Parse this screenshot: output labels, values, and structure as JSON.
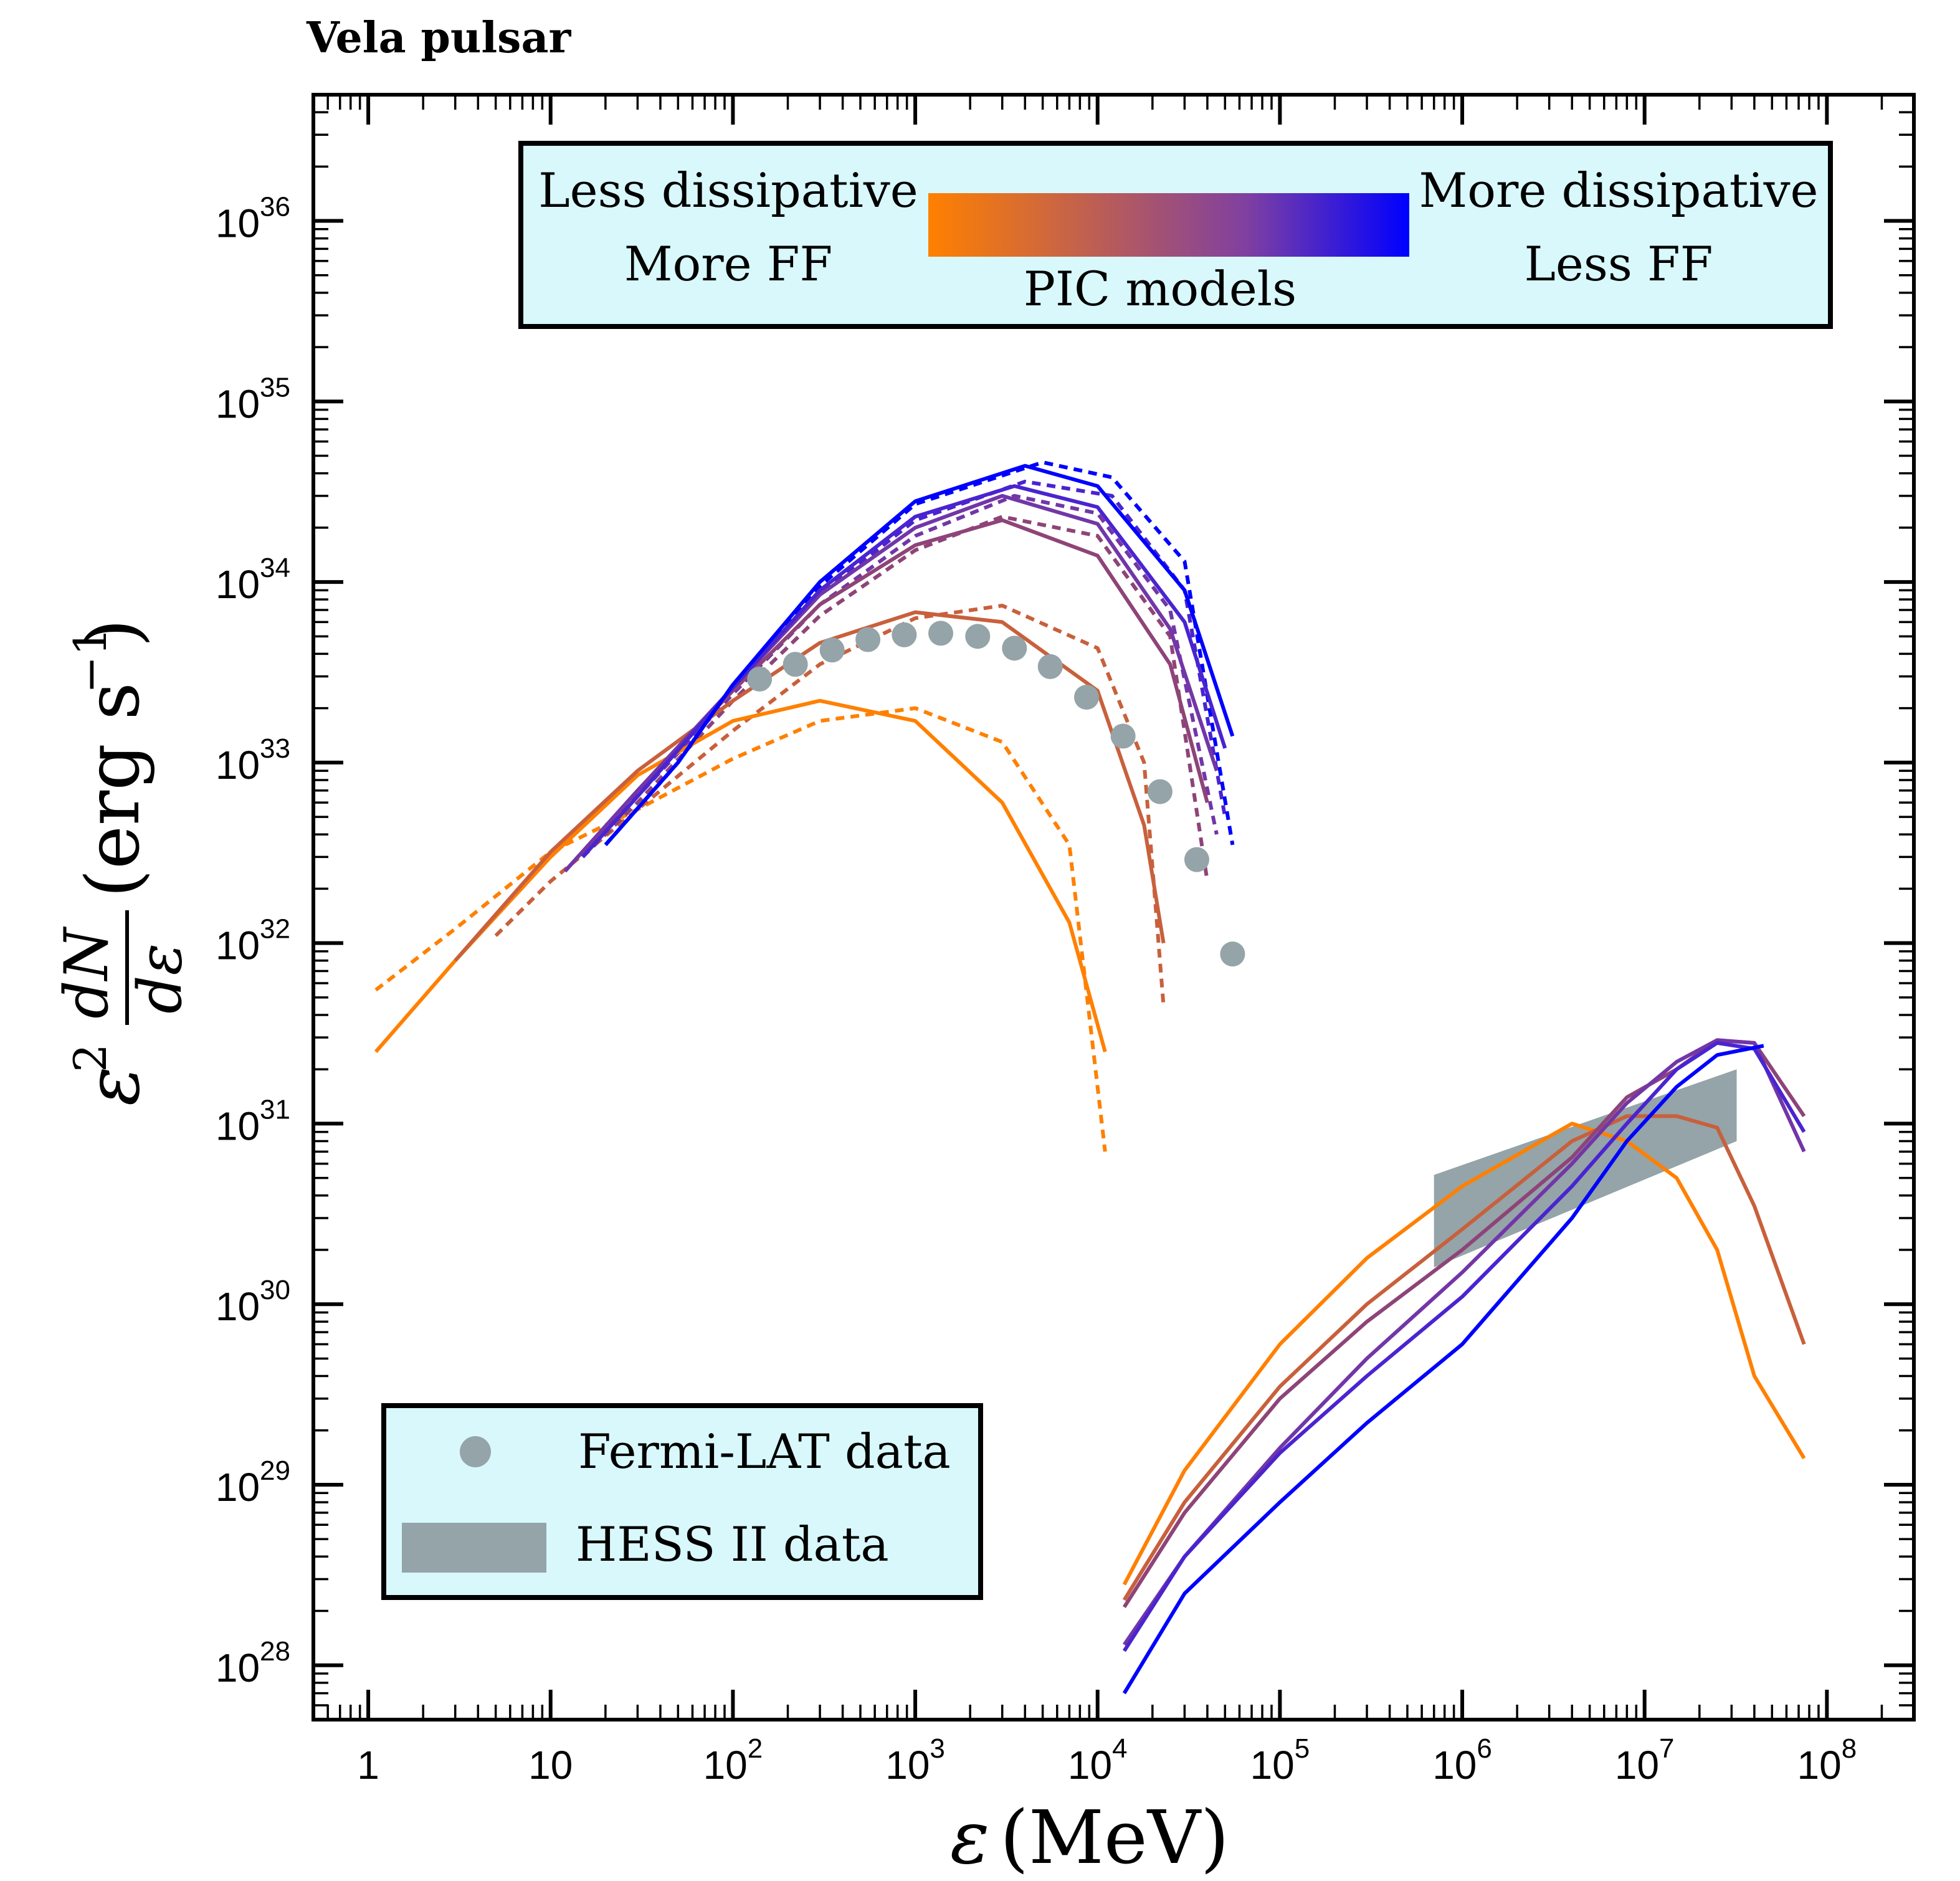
{
  "chart_data": {
    "type": "line",
    "title": "Vela pulsar",
    "xlabel": "ε (MeV)",
    "ylabel": "ε² dN/dε (erg s⁻¹)",
    "x_scale": "log",
    "y_scale": "log",
    "xlim": [
      0.5,
      300000000
    ],
    "ylim": [
      5e+27,
      5e+36
    ],
    "x_ticks": [
      {
        "value": 1,
        "base": "1",
        "exp": ""
      },
      {
        "value": 10,
        "base": "10",
        "exp": ""
      },
      {
        "value": 100,
        "base": "10",
        "exp": "2"
      },
      {
        "value": 1000,
        "base": "10",
        "exp": "3"
      },
      {
        "value": 10000,
        "base": "10",
        "exp": "4"
      },
      {
        "value": 100000,
        "base": "10",
        "exp": "5"
      },
      {
        "value": 1000000,
        "base": "10",
        "exp": "6"
      },
      {
        "value": 10000000,
        "base": "10",
        "exp": "7"
      },
      {
        "value": 100000000,
        "base": "10",
        "exp": "8"
      }
    ],
    "y_ticks": [
      {
        "value": 1e+28,
        "base": "10",
        "exp": "28"
      },
      {
        "value": 1e+29,
        "base": "10",
        "exp": "29"
      },
      {
        "value": 1e+30,
        "base": "10",
        "exp": "30"
      },
      {
        "value": 1e+31,
        "base": "10",
        "exp": "31"
      },
      {
        "value": 1e+32,
        "base": "10",
        "exp": "32"
      },
      {
        "value": 1e+33,
        "base": "10",
        "exp": "33"
      },
      {
        "value": 1e+34,
        "base": "10",
        "exp": "34"
      },
      {
        "value": 1e+35,
        "base": "10",
        "exp": "35"
      },
      {
        "value": 1e+36,
        "base": "10",
        "exp": "36"
      }
    ],
    "colorbar_legend": {
      "left_top": "Less dissipative",
      "left_bottom": "More FF",
      "right_top": "More dissipative",
      "right_bottom": "Less FF",
      "center_label": "PIC models",
      "gradient": [
        "#ff8000",
        "#c06050",
        "#8040a0",
        "#0000ff"
      ]
    },
    "legend": {
      "position": "bottom-left",
      "entries": [
        {
          "label": "Fermi-LAT data",
          "marker": "circle"
        },
        {
          "label": "HESS II data",
          "marker": "band"
        }
      ]
    },
    "colors": {
      "data_gray": "#94a4a8",
      "legend_bg": "#d8f8fc",
      "c1": "#ff8000",
      "c2": "#c8603c",
      "c3": "#8e4478",
      "c4": "#7236a8",
      "c5": "#4a24d0",
      "c6": "#0000ff"
    },
    "fermi_lat": {
      "x": [
        140,
        220,
        350,
        550,
        870,
        1380,
        2200,
        3500,
        5500,
        8700,
        13800,
        22000,
        35000,
        55000
      ],
      "y": [
        2.9e+33,
        3.5e+33,
        4.2e+33,
        4.8e+33,
        5.1e+33,
        5.2e+33,
        5e+33,
        4.3e+33,
        3.4e+33,
        2.3e+33,
        1.4e+33,
        6.9e+32,
        2.9e+32,
        8.7e+31
      ]
    },
    "hess_band": {
      "x": [
        700000,
        32000000
      ],
      "upper": [
        5.2e+30,
        2e+31
      ],
      "lower": [
        1.6e+30,
        8e+30
      ]
    },
    "gev_solid": [
      {
        "color": "c1",
        "x": [
          1.1,
          3,
          10,
          30,
          100,
          300,
          1000,
          3000,
          7000,
          11000
        ],
        "y": [
          2.5e+31,
          8e+31,
          3e+32,
          8.5e+32,
          1.7e+33,
          2.2e+33,
          1.7e+33,
          6e+32,
          1.3e+32,
          2.5e+31
        ]
      },
      {
        "color": "c2",
        "x": [
          3,
          10,
          30,
          100,
          300,
          1000,
          3000,
          10000,
          18000,
          23000
        ],
        "y": [
          8e+31,
          3.2e+32,
          9e+32,
          2.2e+33,
          4.6e+33,
          6.8e+33,
          6e+33,
          2.5e+33,
          4.5e+32,
          1e+32
        ]
      },
      {
        "color": "c3",
        "x": [
          12,
          30,
          100,
          300,
          1000,
          3000,
          10000,
          25000,
          40000
        ],
        "y": [
          2.5e+32,
          7e+32,
          2.5e+33,
          7.5e+33,
          1.6e+34,
          2.2e+34,
          1.4e+34,
          3.5e+33,
          6e+32
        ]
      },
      {
        "color": "c4",
        "x": [
          12,
          30,
          100,
          300,
          1000,
          3000,
          10000,
          25000,
          45000
        ],
        "y": [
          2.5e+32,
          7e+32,
          2.6e+33,
          8.5e+33,
          2e+34,
          3e+34,
          2.1e+34,
          5.5e+33,
          9e+32
        ]
      },
      {
        "color": "c5",
        "x": [
          15,
          30,
          100,
          300,
          1000,
          3500,
          10000,
          30000,
          50000
        ],
        "y": [
          3e+32,
          6.5e+32,
          2.6e+33,
          9e+33,
          2.3e+34,
          3.4e+34,
          2.6e+34,
          6e+33,
          1.2e+33
        ]
      },
      {
        "color": "c6",
        "x": [
          20,
          50,
          100,
          300,
          1000,
          4000,
          10000,
          30000,
          55000
        ],
        "y": [
          3.5e+32,
          1e+33,
          2.7e+33,
          1e+34,
          2.8e+34,
          4.4e+34,
          3.4e+34,
          9e+33,
          1.4e+33
        ]
      }
    ],
    "gev_dashed": [
      {
        "color": "c1",
        "x": [
          1.1,
          3,
          10,
          30,
          100,
          300,
          1000,
          3000,
          7000,
          11000
        ],
        "y": [
          5.5e+31,
          1.2e+32,
          3.2e+32,
          5.5e+32,
          1.05e+33,
          1.7e+33,
          2e+33,
          1.3e+33,
          3.5e+32,
          7e+30
        ]
      },
      {
        "color": "c2",
        "x": [
          5,
          10,
          30,
          100,
          300,
          1000,
          3000,
          10000,
          18000,
          23000
        ],
        "y": [
          1.1e+32,
          2.2e+32,
          5.5e+32,
          1.5e+33,
          3.5e+33,
          6.3e+33,
          7.4e+33,
          4.3e+33,
          1e+33,
          4.5e+31
        ]
      },
      {
        "color": "c3",
        "x": [
          15,
          30,
          100,
          300,
          1000,
          3000,
          10000,
          25000,
          40000
        ],
        "y": [
          3e+32,
          6e+32,
          2.2e+33,
          6.5e+33,
          1.5e+34,
          2.3e+34,
          1.8e+34,
          5e+33,
          2.2e+32
        ]
      },
      {
        "color": "c4",
        "x": [
          15,
          30,
          100,
          300,
          1000,
          3500,
          10000,
          25000,
          45000
        ],
        "y": [
          3e+32,
          6.5e+32,
          2.4e+33,
          7.5e+33,
          1.8e+34,
          3e+34,
          2.4e+34,
          7e+33,
          4e+32
        ]
      },
      {
        "color": "c5",
        "x": [
          15,
          30,
          100,
          300,
          1000,
          4000,
          12000,
          30000,
          50000
        ],
        "y": [
          3e+32,
          6.8e+32,
          2.6e+33,
          8.5e+33,
          2.2e+34,
          3.6e+34,
          3e+34,
          9e+33,
          5e+32
        ]
      },
      {
        "color": "c6",
        "x": [
          20,
          50,
          100,
          300,
          1000,
          5000,
          12000,
          30000,
          55000
        ],
        "y": [
          3.5e+32,
          1e+33,
          2.7e+33,
          9.5e+33,
          2.7e+34,
          4.6e+34,
          3.8e+34,
          1.3e+34,
          3.5e+32
        ]
      }
    ],
    "tev_solid": [
      {
        "color": "c1",
        "x": [
          14000,
          30000,
          100000,
          300000,
          1000000,
          4000000,
          8000000,
          15000000,
          25000000,
          40000000,
          75000000
        ],
        "y": [
          2.8e+28,
          1.2e+29,
          6e+29,
          1.8e+30,
          4.5e+30,
          1e+31,
          8e+30,
          5e+30,
          2e+30,
          4e+29,
          1.4e+29
        ]
      },
      {
        "color": "c2",
        "x": [
          14000,
          30000,
          100000,
          300000,
          1000000,
          4000000,
          8000000,
          15000000,
          25000000,
          40000000,
          75000000
        ],
        "y": [
          2.3e+28,
          8e+28,
          3.5e+29,
          1e+30,
          2.6e+30,
          8e+30,
          1.1e+31,
          1.1e+31,
          9.5e+30,
          3.5e+30,
          6e+29
        ]
      },
      {
        "color": "c3",
        "x": [
          14000,
          30000,
          100000,
          300000,
          1000000,
          4000000,
          8000000,
          15000000,
          25000000,
          40000000,
          75000000
        ],
        "y": [
          2.1e+28,
          7e+28,
          3e+29,
          8e+29,
          2e+30,
          6.5e+30,
          1.4e+31,
          2e+31,
          2.9e+31,
          2.8e+31,
          1.1e+31
        ]
      },
      {
        "color": "c4",
        "x": [
          14000,
          30000,
          100000,
          300000,
          1000000,
          4000000,
          8000000,
          15000000,
          25000000,
          40000000,
          75000000
        ],
        "y": [
          1.3e+28,
          4e+28,
          1.6e+29,
          5e+29,
          1.5e+30,
          6e+30,
          1.3e+31,
          2.2e+31,
          2.9e+31,
          2.8e+31,
          7e+30
        ]
      },
      {
        "color": "c5",
        "x": [
          14000,
          30000,
          100000,
          300000,
          1000000,
          4000000,
          8000000,
          15000000,
          25000000,
          40000000,
          75000000
        ],
        "y": [
          1.2e+28,
          4e+28,
          1.5e+29,
          4e+29,
          1.1e+30,
          4.5e+30,
          1e+31,
          2e+31,
          2.8e+31,
          2.6e+31,
          9e+30
        ]
      },
      {
        "color": "c6",
        "x": [
          14000,
          30000,
          100000,
          300000,
          1000000,
          4000000,
          8000000,
          15000000,
          25000000,
          45000000
        ],
        "y": [
          7e+27,
          2.5e+28,
          8e+28,
          2.2e+29,
          6e+29,
          3e+30,
          8e+30,
          1.6e+31,
          2.4e+31,
          2.7e+31
        ]
      }
    ]
  }
}
